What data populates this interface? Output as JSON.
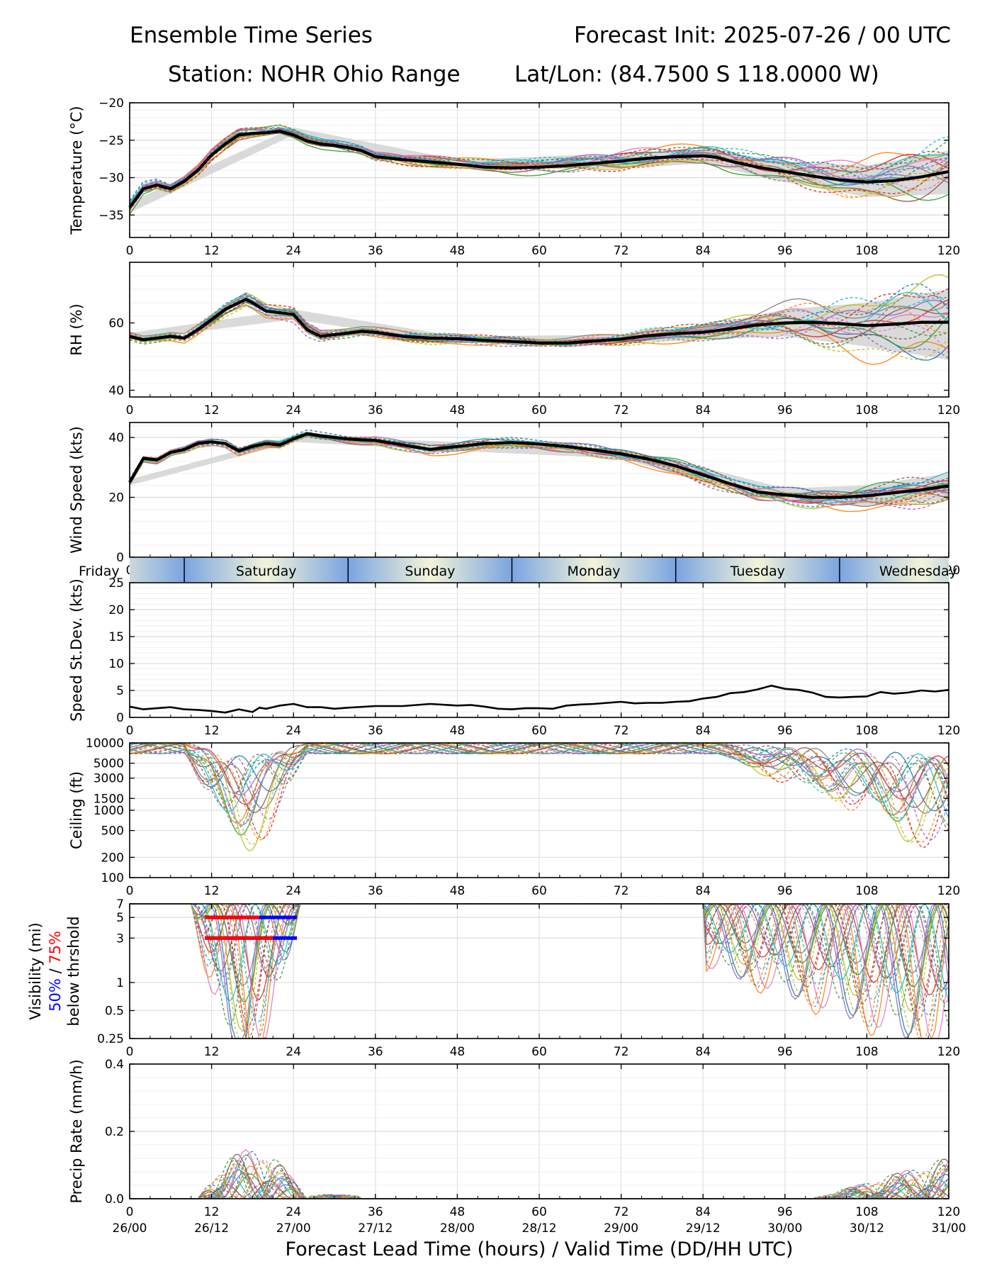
{
  "header": {
    "title_left": "Ensemble Time Series",
    "title_right": "Forecast Init: 2025-07-26 / 00 UTC",
    "station": "Station: NOHR Ohio Range",
    "latlon": "Lat/Lon: (84.7500 S 118.0000 W)"
  },
  "colors": {
    "members": [
      "#1f77b4",
      "#ff7f0e",
      "#2ca02c",
      "#d62728",
      "#9467bd",
      "#8c564b",
      "#e377c2",
      "#7f7f7f",
      "#bcbd22",
      "#17becf"
    ],
    "mean": "#000000",
    "spread": "#d3d3d3",
    "vis50": "#0000ff",
    "vis75": "#ff0000",
    "day_gradient": [
      "#7aa5e0",
      "#f3f3da"
    ]
  },
  "chart_data": [
    {
      "type": "line",
      "id": "temperature",
      "ylabel": "Temperature (°C)",
      "ylim": [
        -38,
        -20
      ],
      "yticks": [
        -35,
        -30,
        -25,
        -20
      ],
      "xlim": [
        0,
        120
      ],
      "xticks": [
        0,
        12,
        24,
        36,
        48,
        60,
        72,
        84,
        96,
        108,
        120
      ],
      "grid": true,
      "mean": {
        "x": [
          0,
          2,
          4,
          6,
          8,
          10,
          12,
          14,
          16,
          18,
          20,
          22,
          24,
          26,
          28,
          30,
          32,
          34,
          36,
          40,
          44,
          48,
          52,
          56,
          60,
          64,
          68,
          72,
          76,
          80,
          84,
          86,
          88,
          92,
          96,
          100,
          104,
          108,
          112,
          116,
          120
        ],
        "y": [
          -34,
          -31.5,
          -31,
          -31.5,
          -30.5,
          -29,
          -27,
          -25.5,
          -24.3,
          -24.1,
          -24,
          -23.8,
          -24.3,
          -25.1,
          -25.5,
          -25.7,
          -26,
          -26.4,
          -27.2,
          -27.6,
          -27.9,
          -28.2,
          -28.6,
          -28.7,
          -28.6,
          -28.4,
          -28.1,
          -27.8,
          -27.4,
          -27.2,
          -27.1,
          -27.3,
          -27.8,
          -28.6,
          -29.2,
          -29.8,
          -30.3,
          -30.6,
          -30.4,
          -29.9,
          -29.2
        ]
      },
      "spread": {
        "x": [
          0,
          24,
          48,
          72,
          84,
          96,
          108,
          120
        ],
        "upper": [
          -33.3,
          -23.3,
          -27.6,
          -26.8,
          -26.2,
          -27.8,
          -28.4,
          -26.4
        ],
        "lower": [
          -34.7,
          -24.3,
          -28.8,
          -28.8,
          -28.1,
          -30.6,
          -32.6,
          -32.2
        ]
      }
    },
    {
      "type": "line",
      "id": "rh",
      "ylabel": "RH (%)",
      "ylim": [
        38,
        78
      ],
      "yticks": [
        40,
        60
      ],
      "xlim": [
        0,
        120
      ],
      "xticks": [
        0,
        12,
        24,
        36,
        48,
        60,
        72,
        84,
        96,
        108,
        120
      ],
      "grid": true,
      "mean": {
        "x": [
          0,
          2,
          4,
          6,
          8,
          10,
          12,
          14,
          16,
          17,
          18,
          20,
          22,
          24,
          26,
          28,
          30,
          32,
          34,
          36,
          40,
          44,
          48,
          52,
          56,
          60,
          64,
          68,
          72,
          76,
          80,
          84,
          88,
          92,
          96,
          100,
          104,
          108,
          112,
          116,
          120
        ],
        "y": [
          56,
          55,
          55.5,
          56,
          55.5,
          58,
          61,
          64,
          66,
          67,
          66,
          63.5,
          63,
          62.5,
          58,
          56,
          56.5,
          57,
          57.5,
          57.2,
          56,
          55.5,
          55.3,
          54.8,
          54.5,
          54,
          54,
          54.6,
          55.2,
          56.2,
          56.8,
          57.2,
          58.2,
          59.4,
          60,
          60.2,
          59.8,
          59.2,
          59.6,
          60.2,
          60.2
        ]
      },
      "spread": {
        "x": [
          0,
          24,
          48,
          72,
          84,
          96,
          108,
          120
        ],
        "upper": [
          57,
          64,
          56,
          56.5,
          59,
          64,
          66,
          70
        ],
        "lower": [
          55,
          61,
          54,
          54,
          55,
          56,
          53,
          49
        ]
      }
    },
    {
      "type": "line",
      "id": "wind",
      "ylabel": "Wind Speed (kts)",
      "ylim": [
        0,
        45
      ],
      "yticks": [
        0,
        20,
        40
      ],
      "xlim": [
        0,
        120
      ],
      "xticks": [
        0,
        12,
        24,
        36,
        48,
        60,
        72,
        84,
        96,
        108,
        120
      ],
      "grid": true,
      "mean": {
        "x": [
          0,
          1,
          2,
          4,
          6,
          8,
          10,
          12,
          14,
          16,
          18,
          20,
          22,
          24,
          26,
          28,
          30,
          32,
          34,
          36,
          40,
          44,
          48,
          52,
          56,
          60,
          64,
          68,
          72,
          76,
          80,
          84,
          88,
          92,
          96,
          100,
          104,
          108,
          112,
          116,
          120
        ],
        "y": [
          25,
          29,
          33,
          32.5,
          35,
          36,
          38,
          38.5,
          38,
          35.5,
          37,
          38,
          37.5,
          39.5,
          41.2,
          40.5,
          40,
          39.5,
          39.2,
          39,
          37.5,
          36,
          37,
          38,
          38.3,
          37.8,
          37,
          35.8,
          34.5,
          32.8,
          30.5,
          27.5,
          24.5,
          21.8,
          20.8,
          20,
          20,
          20.5,
          21.5,
          22.5,
          23.8
        ]
      },
      "spread": {
        "x": [
          0,
          24,
          48,
          72,
          84,
          96,
          108,
          120
        ],
        "upper": [
          26,
          40.5,
          38.5,
          36,
          30,
          23,
          24,
          28
        ],
        "lower": [
          24,
          38.5,
          35.5,
          33,
          25,
          18.5,
          17,
          19
        ]
      }
    },
    {
      "type": "line",
      "id": "speed_sd",
      "ylabel": "Speed St.Dev. (kts)",
      "ylim": [
        0,
        25
      ],
      "yticks": [
        0,
        5,
        10,
        15,
        20,
        25
      ],
      "xlim": [
        0,
        120
      ],
      "xticks": [
        0,
        12,
        24,
        36,
        48,
        60,
        72,
        84,
        96,
        108,
        120
      ],
      "grid": true,
      "mean": {
        "x": [
          0,
          2,
          4,
          6,
          8,
          10,
          12,
          14,
          16,
          18,
          19,
          20,
          22,
          24,
          26,
          28,
          30,
          32,
          36,
          40,
          44,
          48,
          50,
          52,
          54,
          56,
          58,
          60,
          62,
          64,
          66,
          68,
          70,
          72,
          74,
          76,
          78,
          80,
          82,
          84,
          86,
          88,
          90,
          92,
          94,
          96,
          98,
          100,
          102,
          104,
          106,
          108,
          110,
          112,
          114,
          116,
          118,
          120
        ],
        "y": [
          2,
          1.5,
          1.7,
          1.9,
          1.5,
          1.4,
          1.2,
          0.9,
          1.5,
          1,
          1.8,
          1.6,
          2.2,
          2.5,
          1.9,
          1.9,
          1.6,
          1.8,
          2.1,
          2.1,
          2.5,
          2.2,
          2.3,
          2,
          1.6,
          1.5,
          1.7,
          1.7,
          1.6,
          2.2,
          2.4,
          2.5,
          2.7,
          2.9,
          2.6,
          2.7,
          2.7,
          2.9,
          3,
          3.5,
          3.8,
          4.5,
          4.7,
          5.2,
          5.9,
          5.3,
          5.1,
          4.6,
          3.8,
          3.7,
          3.8,
          3.9,
          4.7,
          4.4,
          4.6,
          5,
          4.8,
          5.1
        ]
      }
    },
    {
      "type": "line",
      "id": "ceiling",
      "ylabel": "Ceiling (ft)",
      "ylim": [
        100,
        10000
      ],
      "yscale": "log",
      "ytick_labels": [
        "10000",
        "5000",
        "3000",
        "1500",
        "1000",
        "500",
        "200",
        "100"
      ],
      "yticks": [
        10000,
        5000,
        3000,
        1500,
        1000,
        500,
        200,
        100
      ],
      "xlim": [
        0,
        120
      ],
      "xticks": [
        0,
        12,
        24,
        36,
        48,
        60,
        72,
        84,
        96,
        108,
        120
      ],
      "grid": true
    },
    {
      "type": "line",
      "id": "visibility",
      "ylabel_lines": [
        "Visibility (mi)",
        "below thrshold"
      ],
      "ylabel_50": "50%",
      "ylabel_sep": " / ",
      "ylabel_75": "75%",
      "ylim": [
        0.25,
        7
      ],
      "yscale": "log",
      "yticks": [
        0.25,
        0.5,
        1,
        3,
        5,
        7
      ],
      "ytick_labels": [
        "0.25",
        "0.5",
        "1",
        "3",
        "5",
        "7"
      ],
      "xlim": [
        0,
        120
      ],
      "xticks": [
        0,
        12,
        24,
        36,
        48,
        60,
        72,
        84,
        96,
        108,
        120
      ],
      "grid": true,
      "threshold_bars": [
        {
          "threshold": 5,
          "x_start": 11,
          "x_75_end": 19,
          "x_end": 24.5
        },
        {
          "threshold": 3,
          "x_start": 11,
          "x_75_end": 21,
          "x_end": 24.5
        }
      ]
    },
    {
      "type": "line",
      "id": "precip",
      "ylabel": "Precip Rate (mm/h)",
      "ylim": [
        0,
        0.4
      ],
      "yticks": [
        0.0,
        0.2,
        0.4
      ],
      "ytick_labels": [
        "0.0",
        "0.2",
        "0.4"
      ],
      "xlim": [
        0,
        120
      ],
      "xticks": [
        0,
        12,
        24,
        36,
        48,
        60,
        72,
        84,
        96,
        108,
        120
      ],
      "xticklabels2": [
        "26/00",
        "26/12",
        "27/00",
        "27/12",
        "28/00",
        "28/12",
        "29/00",
        "29/12",
        "30/00",
        "30/12",
        "31/00"
      ],
      "xlabel": "Forecast Lead Time (hours) / Valid Time (DD/HH UTC)",
      "grid": true
    }
  ],
  "day_band": {
    "days": [
      {
        "label": "Friday",
        "start": 0,
        "end": 8
      },
      {
        "label": "Saturday",
        "start": 8,
        "end": 32
      },
      {
        "label": "Sunday",
        "start": 32,
        "end": 56
      },
      {
        "label": "Monday",
        "start": 56,
        "end": 80
      },
      {
        "label": "Tuesday",
        "start": 80,
        "end": 104
      },
      {
        "label": "Wednesday",
        "start": 104,
        "end": 120
      }
    ]
  }
}
